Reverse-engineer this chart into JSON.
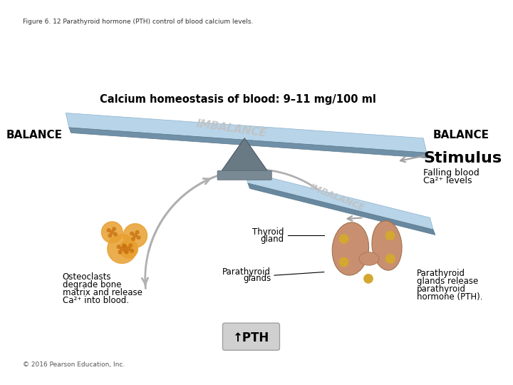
{
  "fig_title": "Figure 6. 12 Parathyroid hormone (PTH) control of blood calcium levels.",
  "copyright": "© 2016 Pearson Education, Inc.",
  "homeostasis_text": "Calcium homeostasis of blood: 9–11 mg/100 ml",
  "balance_left": "BALANCE",
  "balance_right": "BALANCE",
  "imbalance_top": "IMBALANCE",
  "imbalance_bottom": "IMBALANCE",
  "stimulus_title": "Stimulus",
  "stimulus_sub1": "Falling blood",
  "stimulus_sub2": "Ca²⁺ levels",
  "thyroid_label1": "Thyroid",
  "thyroid_label2": "gland",
  "parathyroid_label1": "Parathyroid",
  "parathyroid_label2": "glands",
  "parathyroid_desc1": "Parathyroid",
  "parathyroid_desc2": "glands release",
  "parathyroid_desc3": "parathyroid",
  "parathyroid_desc4": "hormone (PTH).",
  "osteoclast_label1": "Osteoclasts",
  "osteoclast_label2": "degrade bone",
  "osteoclast_label3": "matrix and release",
  "osteoclast_label4": "Ca²⁺ into blood.",
  "pth_label": "↑PTH",
  "bg_color": "#ffffff",
  "seesaw_color_top": "#a8c4d4",
  "seesaw_color_bottom": "#6a9ab5",
  "pivot_color": "#7a8a95",
  "arrow_color": "#a0a0a0",
  "pth_box_color": "#c8c8c8",
  "imbalance_color": "#b0b0b0",
  "text_dark": "#000000",
  "text_bold_color": "#000000"
}
